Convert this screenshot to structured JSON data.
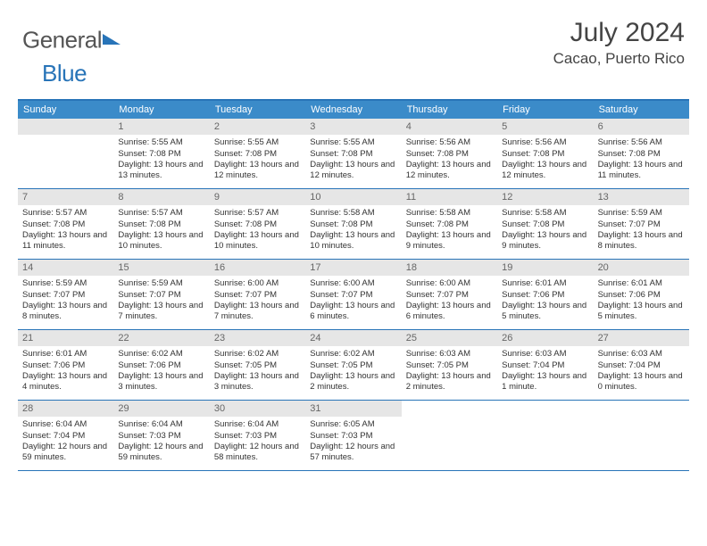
{
  "brand": {
    "part1": "General",
    "part2": "Blue"
  },
  "title": "July 2024",
  "location": "Cacao, Puerto Rico",
  "weekdays": [
    "Sunday",
    "Monday",
    "Tuesday",
    "Wednesday",
    "Thursday",
    "Friday",
    "Saturday"
  ],
  "colors": {
    "header_bg": "#3b8bc9",
    "border": "#2874b8",
    "daynum_bg": "#e6e6e6",
    "text": "#333333"
  },
  "startOffset": 1,
  "days": [
    {
      "n": 1,
      "sunrise": "5:55 AM",
      "sunset": "7:08 PM",
      "daylight": "13 hours and 13 minutes."
    },
    {
      "n": 2,
      "sunrise": "5:55 AM",
      "sunset": "7:08 PM",
      "daylight": "13 hours and 12 minutes."
    },
    {
      "n": 3,
      "sunrise": "5:55 AM",
      "sunset": "7:08 PM",
      "daylight": "13 hours and 12 minutes."
    },
    {
      "n": 4,
      "sunrise": "5:56 AM",
      "sunset": "7:08 PM",
      "daylight": "13 hours and 12 minutes."
    },
    {
      "n": 5,
      "sunrise": "5:56 AM",
      "sunset": "7:08 PM",
      "daylight": "13 hours and 12 minutes."
    },
    {
      "n": 6,
      "sunrise": "5:56 AM",
      "sunset": "7:08 PM",
      "daylight": "13 hours and 11 minutes."
    },
    {
      "n": 7,
      "sunrise": "5:57 AM",
      "sunset": "7:08 PM",
      "daylight": "13 hours and 11 minutes."
    },
    {
      "n": 8,
      "sunrise": "5:57 AM",
      "sunset": "7:08 PM",
      "daylight": "13 hours and 10 minutes."
    },
    {
      "n": 9,
      "sunrise": "5:57 AM",
      "sunset": "7:08 PM",
      "daylight": "13 hours and 10 minutes."
    },
    {
      "n": 10,
      "sunrise": "5:58 AM",
      "sunset": "7:08 PM",
      "daylight": "13 hours and 10 minutes."
    },
    {
      "n": 11,
      "sunrise": "5:58 AM",
      "sunset": "7:08 PM",
      "daylight": "13 hours and 9 minutes."
    },
    {
      "n": 12,
      "sunrise": "5:58 AM",
      "sunset": "7:08 PM",
      "daylight": "13 hours and 9 minutes."
    },
    {
      "n": 13,
      "sunrise": "5:59 AM",
      "sunset": "7:07 PM",
      "daylight": "13 hours and 8 minutes."
    },
    {
      "n": 14,
      "sunrise": "5:59 AM",
      "sunset": "7:07 PM",
      "daylight": "13 hours and 8 minutes."
    },
    {
      "n": 15,
      "sunrise": "5:59 AM",
      "sunset": "7:07 PM",
      "daylight": "13 hours and 7 minutes."
    },
    {
      "n": 16,
      "sunrise": "6:00 AM",
      "sunset": "7:07 PM",
      "daylight": "13 hours and 7 minutes."
    },
    {
      "n": 17,
      "sunrise": "6:00 AM",
      "sunset": "7:07 PM",
      "daylight": "13 hours and 6 minutes."
    },
    {
      "n": 18,
      "sunrise": "6:00 AM",
      "sunset": "7:07 PM",
      "daylight": "13 hours and 6 minutes."
    },
    {
      "n": 19,
      "sunrise": "6:01 AM",
      "sunset": "7:06 PM",
      "daylight": "13 hours and 5 minutes."
    },
    {
      "n": 20,
      "sunrise": "6:01 AM",
      "sunset": "7:06 PM",
      "daylight": "13 hours and 5 minutes."
    },
    {
      "n": 21,
      "sunrise": "6:01 AM",
      "sunset": "7:06 PM",
      "daylight": "13 hours and 4 minutes."
    },
    {
      "n": 22,
      "sunrise": "6:02 AM",
      "sunset": "7:06 PM",
      "daylight": "13 hours and 3 minutes."
    },
    {
      "n": 23,
      "sunrise": "6:02 AM",
      "sunset": "7:05 PM",
      "daylight": "13 hours and 3 minutes."
    },
    {
      "n": 24,
      "sunrise": "6:02 AM",
      "sunset": "7:05 PM",
      "daylight": "13 hours and 2 minutes."
    },
    {
      "n": 25,
      "sunrise": "6:03 AM",
      "sunset": "7:05 PM",
      "daylight": "13 hours and 2 minutes."
    },
    {
      "n": 26,
      "sunrise": "6:03 AM",
      "sunset": "7:04 PM",
      "daylight": "13 hours and 1 minute."
    },
    {
      "n": 27,
      "sunrise": "6:03 AM",
      "sunset": "7:04 PM",
      "daylight": "13 hours and 0 minutes."
    },
    {
      "n": 28,
      "sunrise": "6:04 AM",
      "sunset": "7:04 PM",
      "daylight": "12 hours and 59 minutes."
    },
    {
      "n": 29,
      "sunrise": "6:04 AM",
      "sunset": "7:03 PM",
      "daylight": "12 hours and 59 minutes."
    },
    {
      "n": 30,
      "sunrise": "6:04 AM",
      "sunset": "7:03 PM",
      "daylight": "12 hours and 58 minutes."
    },
    {
      "n": 31,
      "sunrise": "6:05 AM",
      "sunset": "7:03 PM",
      "daylight": "12 hours and 57 minutes."
    }
  ],
  "labels": {
    "sunrise": "Sunrise:",
    "sunset": "Sunset:",
    "daylight": "Daylight:"
  }
}
